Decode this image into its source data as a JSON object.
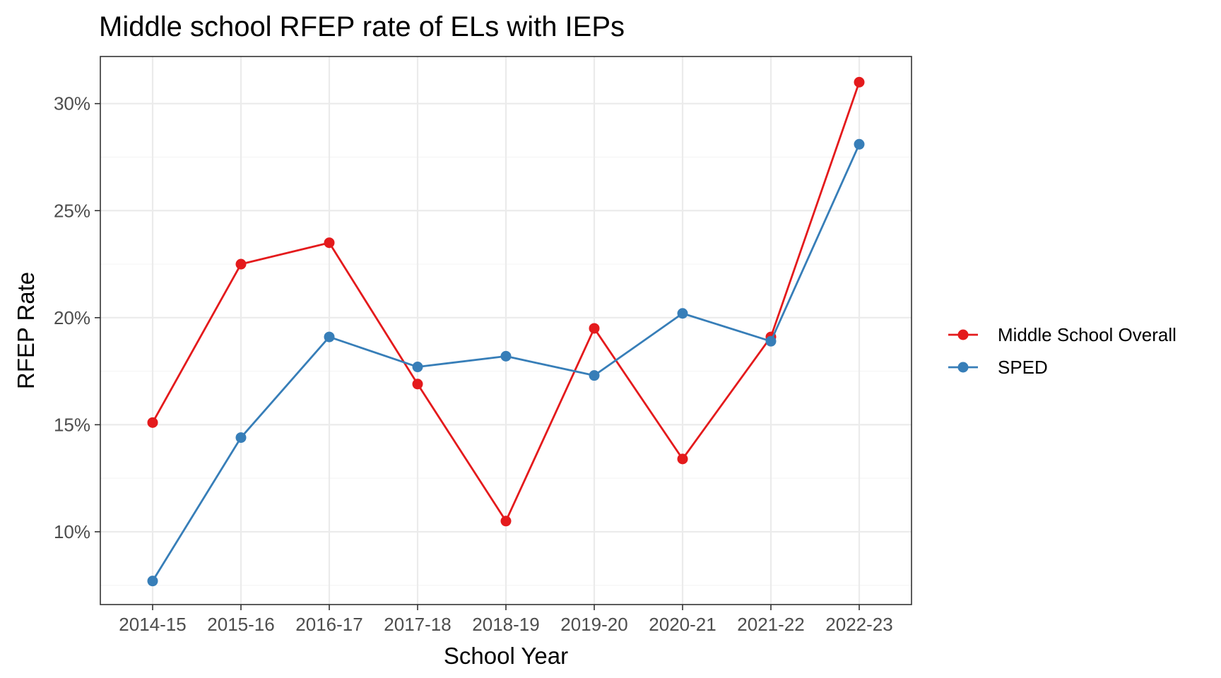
{
  "chart_data": {
    "type": "line",
    "title": "Middle school RFEP rate of ELs with IEPs",
    "xlabel": "School Year",
    "ylabel": "RFEP Rate",
    "categories": [
      "2014-15",
      "2015-16",
      "2016-17",
      "2017-18",
      "2018-19",
      "2019-20",
      "2020-21",
      "2021-22",
      "2022-23"
    ],
    "ylim": [
      6.6,
      32.2
    ],
    "yticks": [
      10,
      15,
      20,
      25,
      30
    ],
    "ytick_labels": [
      "10%",
      "15%",
      "20%",
      "25%",
      "30%"
    ],
    "grid": true,
    "legend_position": "right",
    "series": [
      {
        "name": "Middle School Overall",
        "color": "#E41A1C",
        "values": [
          15.1,
          22.5,
          23.5,
          16.9,
          10.5,
          19.5,
          13.4,
          19.1,
          31.0
        ]
      },
      {
        "name": "SPED",
        "color": "#377EB8",
        "values": [
          7.7,
          14.4,
          19.1,
          17.7,
          18.2,
          17.3,
          20.2,
          18.9,
          28.1
        ]
      }
    ]
  }
}
